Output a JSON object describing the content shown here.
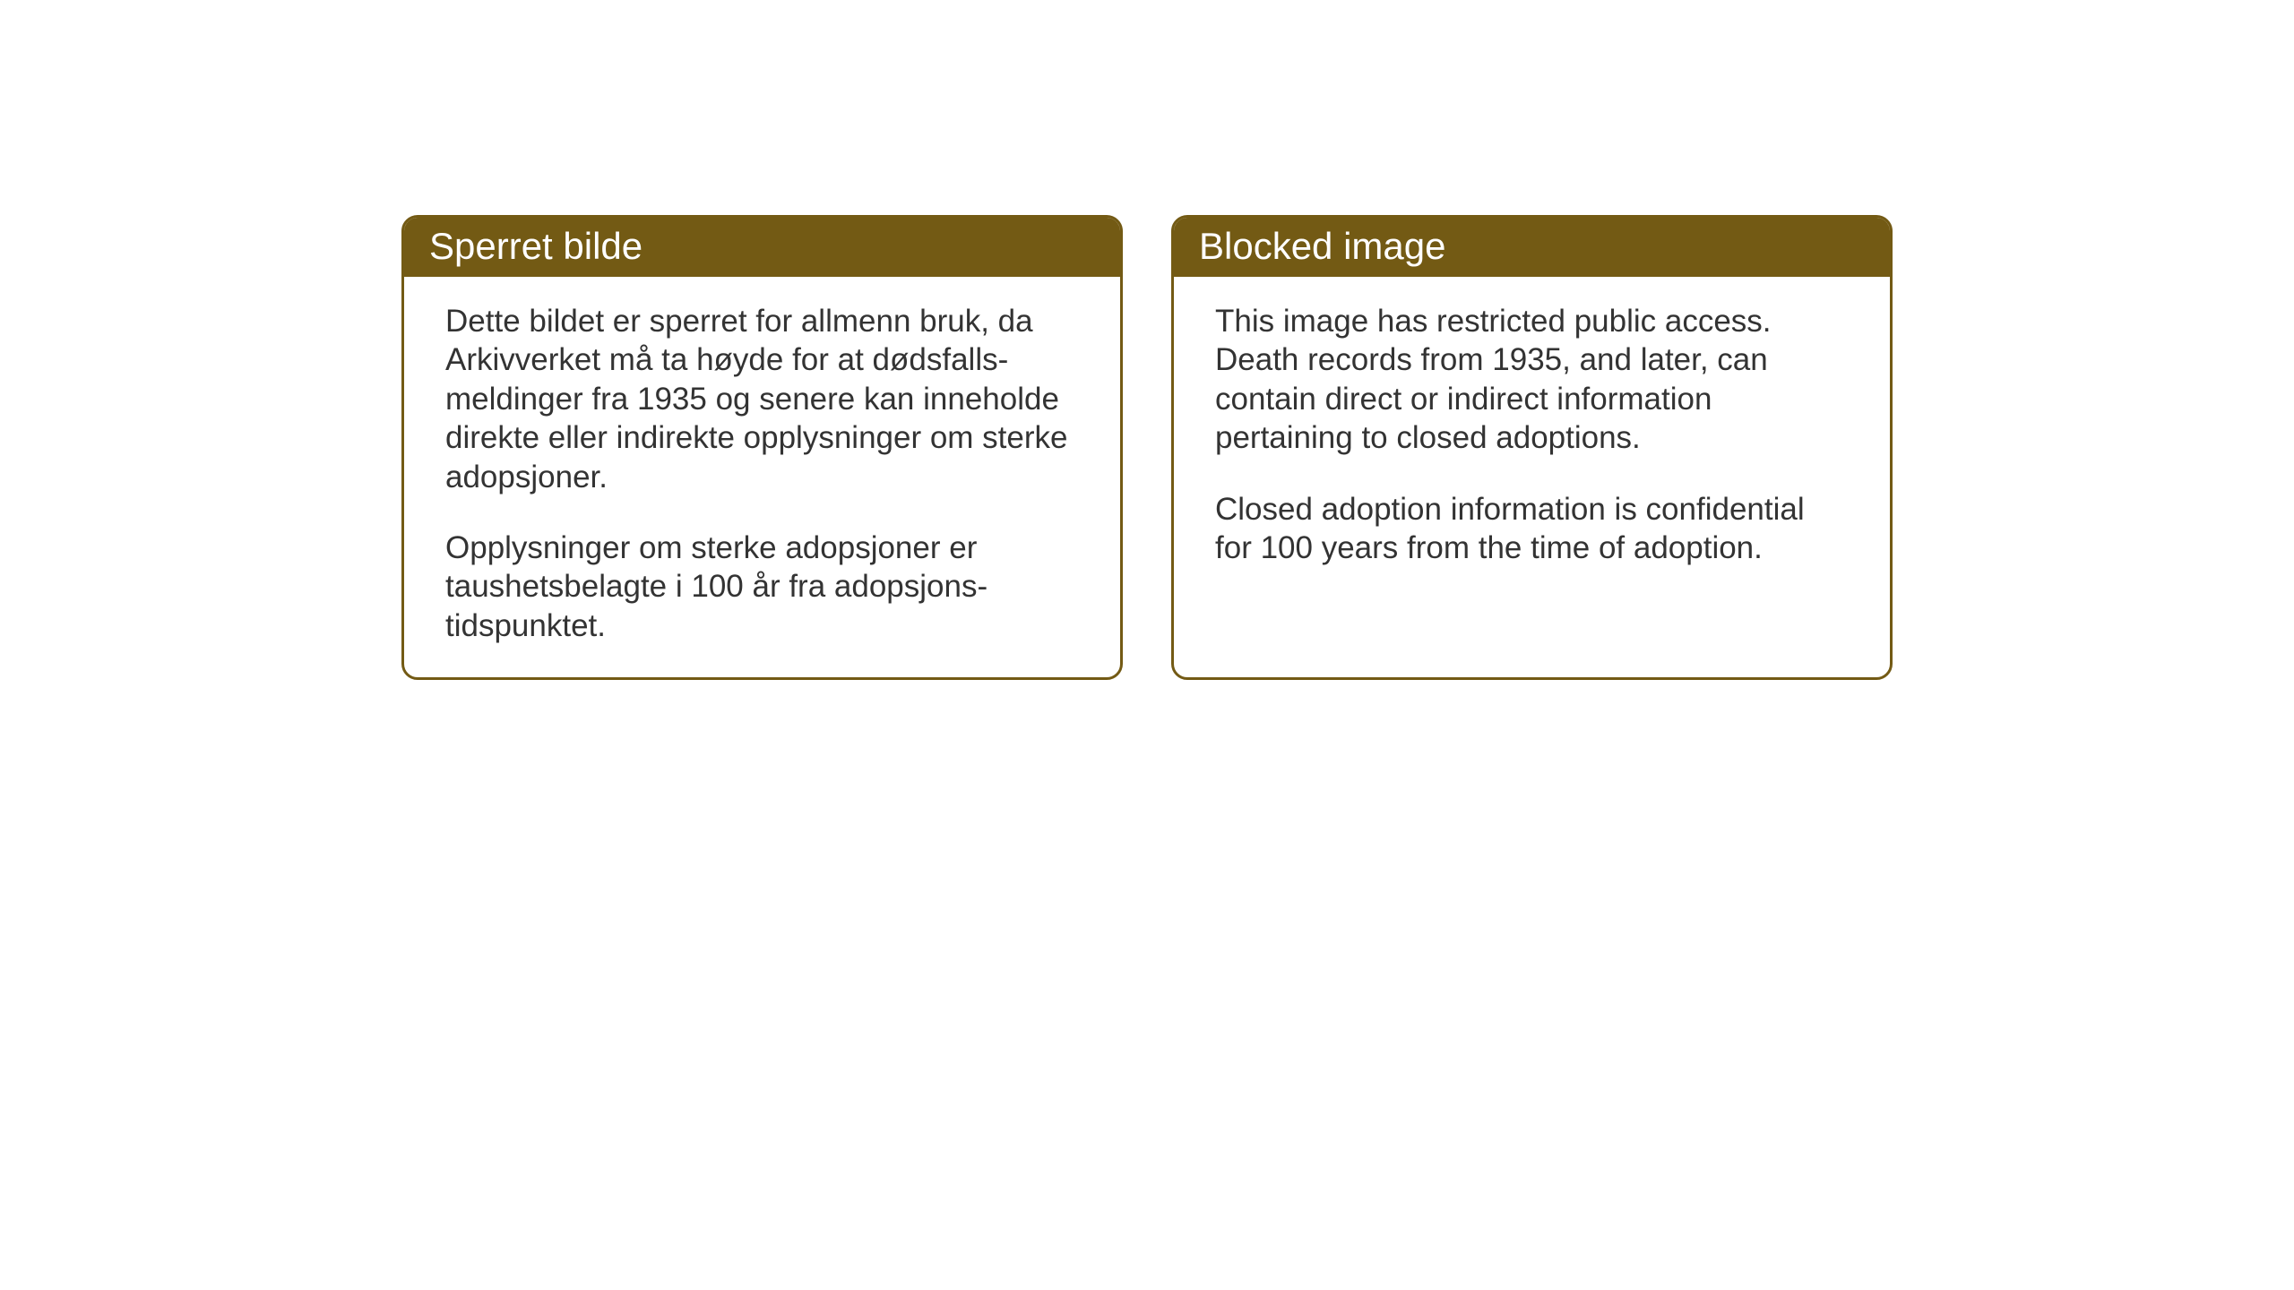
{
  "cards": {
    "left": {
      "title": "Sperret bilde",
      "paragraph1": "Dette bildet er sperret for allmenn bruk, da Arkivverket må ta høyde for at dødsfalls-meldinger fra 1935 og senere kan inneholde direkte eller indirekte opplysninger om sterke adopsjoner.",
      "paragraph2": "Opplysninger om sterke adopsjoner er taushetsbelagte i 100 år fra adopsjons-tidspunktet."
    },
    "right": {
      "title": "Blocked image",
      "paragraph1": "This image has restricted public access. Death records from 1935, and later, can contain direct or indirect information pertaining to closed adoptions.",
      "paragraph2": "Closed adoption information is confidential for 100 years from the time of adoption."
    }
  },
  "styling": {
    "card_border_color": "#735a14",
    "header_background_color": "#735a14",
    "header_text_color": "#ffffff",
    "body_text_color": "#333333",
    "background_color": "#ffffff",
    "header_fontsize": 42,
    "body_fontsize": 35,
    "border_radius": 18,
    "border_width": 3
  }
}
